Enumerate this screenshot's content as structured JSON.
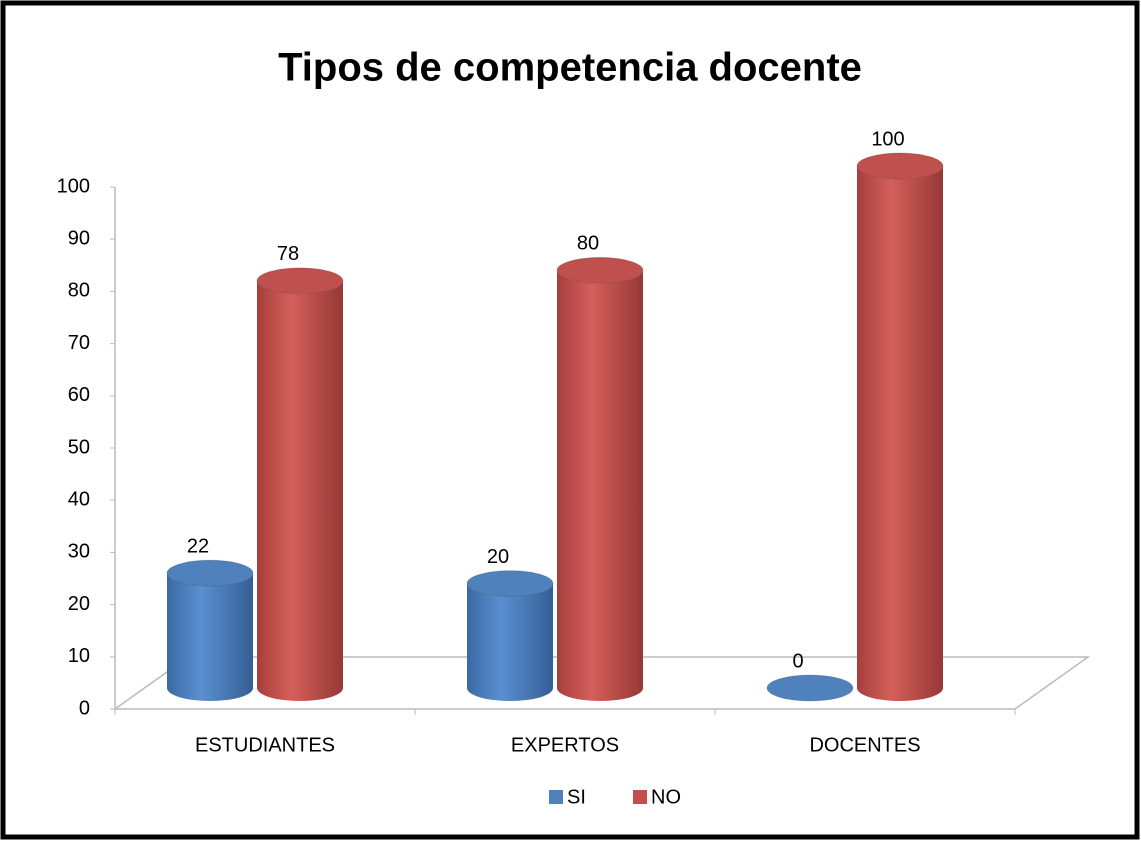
{
  "chart_data": {
    "type": "bar3d",
    "title": "Tipos de  competencia docente",
    "categories": [
      "ESTUDIANTES",
      "EXPERTOS",
      "DOCENTES"
    ],
    "series": [
      {
        "name": "SI",
        "color": "#4f81bd",
        "values": [
          22,
          20,
          0
        ]
      },
      {
        "name": "NO",
        "color": "#c0504d",
        "values": [
          78,
          80,
          100
        ]
      }
    ],
    "ylim": [
      0,
      100
    ],
    "yticks": [
      0,
      10,
      20,
      30,
      40,
      50,
      60,
      70,
      80,
      90,
      100
    ],
    "grid": false,
    "legend": "bottom"
  }
}
